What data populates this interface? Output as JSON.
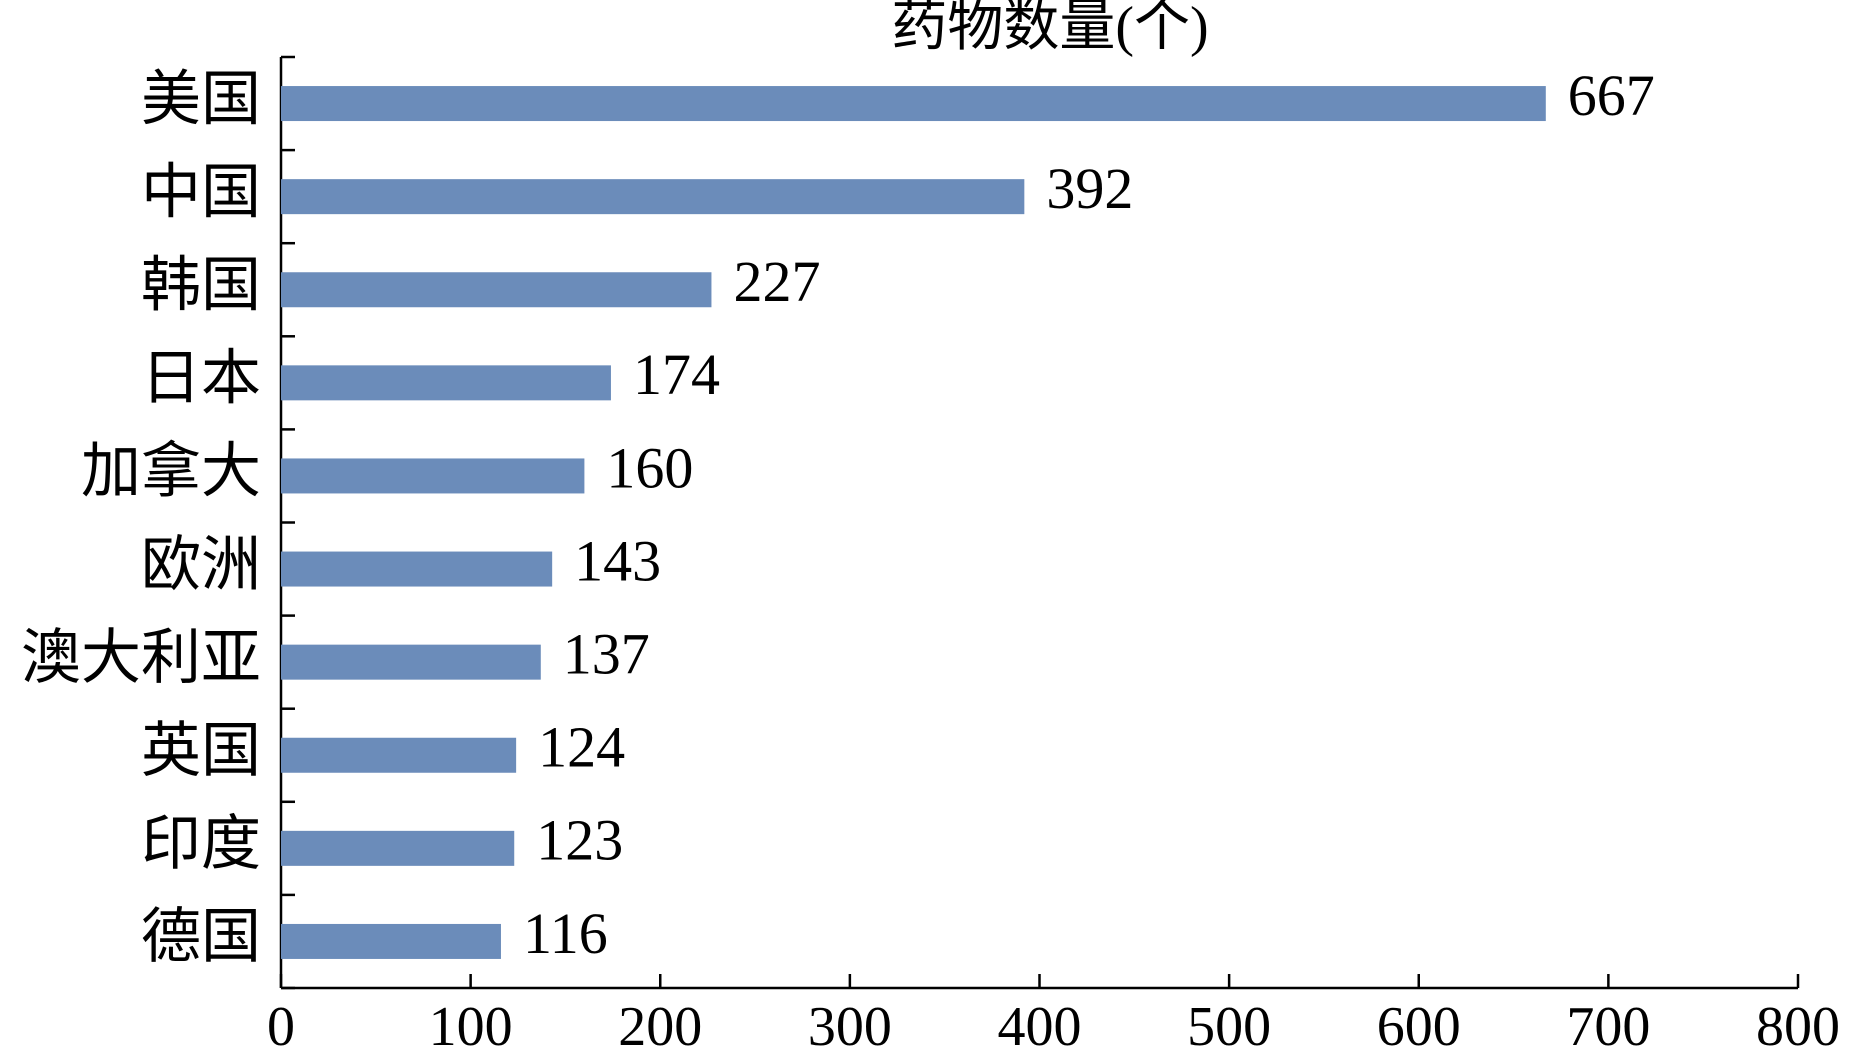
{
  "chart_data": {
    "type": "bar",
    "orientation": "horizontal",
    "title": "药物数量(个)",
    "categories": [
      "美国",
      "中国",
      "韩国",
      "日本",
      "加拿大",
      "欧洲",
      "澳大利亚",
      "英国",
      "印度",
      "德国"
    ],
    "values": [
      667,
      392,
      227,
      174,
      160,
      143,
      137,
      124,
      123,
      116
    ],
    "color": "#6b8cba",
    "xlim": [
      0,
      800
    ],
    "xticks": [
      0,
      100,
      200,
      300,
      400,
      500,
      600,
      700,
      800
    ],
    "grid": false
  }
}
